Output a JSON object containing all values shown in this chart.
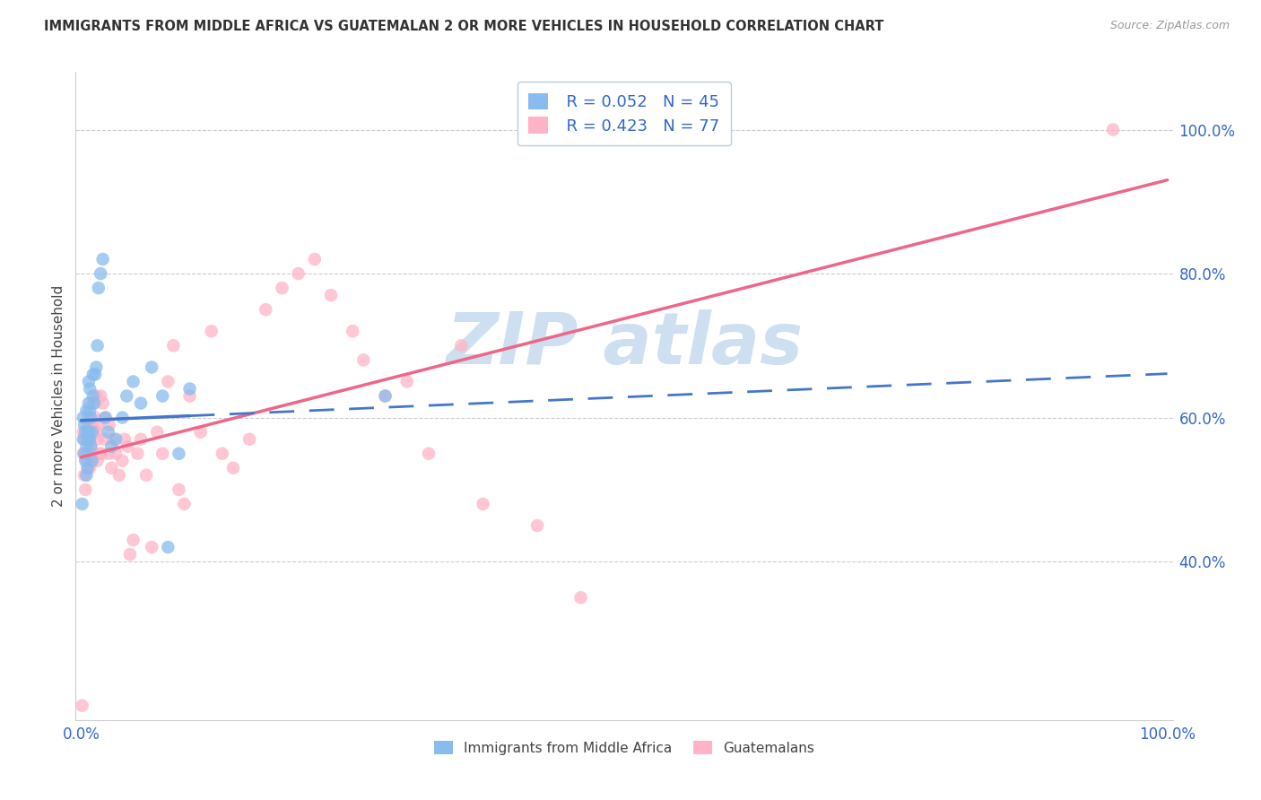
{
  "title": "IMMIGRANTS FROM MIDDLE AFRICA VS GUATEMALAN 2 OR MORE VEHICLES IN HOUSEHOLD CORRELATION CHART",
  "source": "Source: ZipAtlas.com",
  "ylabel": "2 or more Vehicles in Household",
  "blue_color": "#88BBEE",
  "pink_color": "#FFB3C6",
  "blue_line_color": "#4477CC",
  "pink_line_color": "#EE6688",
  "watermark_color": "#C8DCF0",
  "axis_color": "#3366CC",
  "grid_color": "#CCCCCC",
  "title_color": "#333333",
  "source_color": "#999999",
  "xlim": [
    -0.005,
    1.005
  ],
  "ylim": [
    0.18,
    1.08
  ],
  "yticks": [
    0.4,
    0.6,
    0.8,
    1.0
  ],
  "ytick_labels": [
    "40.0%",
    "60.0%",
    "80.0%",
    "100.0%"
  ],
  "xtick_labels": [
    "0.0%",
    "100.0%"
  ],
  "xtick_pos": [
    0.0,
    1.0
  ],
  "legend_r1": "R = 0.052",
  "legend_n1": "N = 45",
  "legend_r2": "R = 0.423",
  "legend_n2": "N = 77",
  "blue_x": [
    0.001,
    0.002,
    0.002,
    0.003,
    0.003,
    0.004,
    0.004,
    0.005,
    0.005,
    0.005,
    0.006,
    0.006,
    0.007,
    0.007,
    0.007,
    0.008,
    0.008,
    0.008,
    0.009,
    0.009,
    0.01,
    0.01,
    0.011,
    0.011,
    0.012,
    0.013,
    0.014,
    0.015,
    0.016,
    0.018,
    0.02,
    0.022,
    0.025,
    0.028,
    0.032,
    0.038,
    0.042,
    0.048,
    0.055,
    0.065,
    0.075,
    0.08,
    0.09,
    0.1,
    0.28
  ],
  "blue_y": [
    0.48,
    0.57,
    0.6,
    0.55,
    0.59,
    0.54,
    0.58,
    0.52,
    0.56,
    0.61,
    0.53,
    0.57,
    0.58,
    0.62,
    0.65,
    0.57,
    0.61,
    0.64,
    0.56,
    0.6,
    0.54,
    0.58,
    0.63,
    0.66,
    0.62,
    0.66,
    0.67,
    0.7,
    0.78,
    0.8,
    0.82,
    0.6,
    0.58,
    0.56,
    0.57,
    0.6,
    0.63,
    0.65,
    0.62,
    0.67,
    0.63,
    0.42,
    0.55,
    0.64,
    0.63
  ],
  "pink_x": [
    0.001,
    0.002,
    0.002,
    0.003,
    0.003,
    0.004,
    0.004,
    0.005,
    0.005,
    0.006,
    0.006,
    0.007,
    0.007,
    0.008,
    0.008,
    0.009,
    0.009,
    0.01,
    0.01,
    0.011,
    0.011,
    0.012,
    0.012,
    0.013,
    0.014,
    0.014,
    0.015,
    0.015,
    0.016,
    0.017,
    0.018,
    0.019,
    0.02,
    0.022,
    0.023,
    0.025,
    0.026,
    0.028,
    0.03,
    0.032,
    0.035,
    0.038,
    0.04,
    0.043,
    0.045,
    0.048,
    0.052,
    0.055,
    0.06,
    0.065,
    0.07,
    0.075,
    0.08,
    0.085,
    0.09,
    0.095,
    0.1,
    0.11,
    0.12,
    0.13,
    0.14,
    0.155,
    0.17,
    0.185,
    0.2,
    0.215,
    0.23,
    0.25,
    0.26,
    0.28,
    0.3,
    0.32,
    0.35,
    0.37,
    0.42,
    0.46,
    0.95
  ],
  "pink_y": [
    0.2,
    0.55,
    0.58,
    0.52,
    0.57,
    0.5,
    0.55,
    0.54,
    0.58,
    0.53,
    0.59,
    0.55,
    0.6,
    0.53,
    0.57,
    0.56,
    0.62,
    0.54,
    0.59,
    0.55,
    0.58,
    0.62,
    0.55,
    0.6,
    0.58,
    0.63,
    0.54,
    0.57,
    0.59,
    0.55,
    0.63,
    0.55,
    0.62,
    0.57,
    0.6,
    0.55,
    0.59,
    0.53,
    0.57,
    0.55,
    0.52,
    0.54,
    0.57,
    0.56,
    0.41,
    0.43,
    0.55,
    0.57,
    0.52,
    0.42,
    0.58,
    0.55,
    0.65,
    0.7,
    0.5,
    0.48,
    0.63,
    0.58,
    0.72,
    0.55,
    0.53,
    0.57,
    0.75,
    0.78,
    0.8,
    0.82,
    0.77,
    0.72,
    0.68,
    0.63,
    0.65,
    0.55,
    0.7,
    0.48,
    0.45,
    0.35,
    1.0
  ],
  "blue_line_x0": 0.0,
  "blue_line_x_solid_end": 0.1,
  "blue_line_x1": 1.0,
  "blue_line_y_intercept": 0.596,
  "blue_line_slope": 0.065,
  "pink_line_x0": 0.0,
  "pink_line_x1": 1.0,
  "pink_line_y_intercept": 0.545,
  "pink_line_slope": 0.385
}
